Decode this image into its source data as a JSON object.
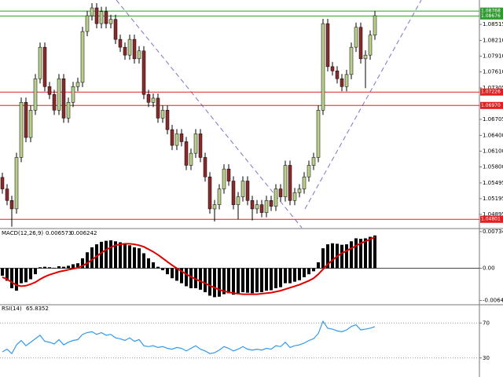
{
  "chart_data": [
    {
      "type": "candlestick",
      "up_color": "#b9cf8c",
      "down_color": "#8c2a2a",
      "wick_color": "#000000",
      "ylim": [
        1.0464,
        1.0898
      ],
      "yticks": [
        1.08515,
        {
          "value": 1.0821,
          "label": "1.08210"
        },
        {
          "value": 1.0791,
          "label": "1.07910"
        },
        {
          "value": 1.0761,
          "label": "1.07610"
        },
        1.07305,
        1.06705,
        {
          "value": 1.064,
          "label": "1.06400"
        },
        {
          "value": 1.061,
          "label": "1.06100"
        },
        {
          "value": 1.058,
          "label": "1.05800"
        },
        1.05495,
        1.05195,
        1.04895
      ],
      "levels": [
        {
          "value": 1.08768,
          "color": "#2e9a2e"
        },
        {
          "value": 1.08676,
          "color": "#2e9a2e"
        },
        {
          "value": 1.07226,
          "color": "#e02020"
        },
        {
          "value": 1.0697,
          "label": "1.06970",
          "color": "#e02020"
        },
        {
          "value": 1.04801,
          "color": "#e02020"
        }
      ],
      "candles": [
        [
          1.056,
          1.0569,
          1.0529,
          1.0538
        ],
        [
          1.0538,
          1.0547,
          1.0507,
          1.0516
        ],
        [
          1.0516,
          1.0525,
          1.0466,
          1.05
        ],
        [
          1.05,
          1.0607,
          1.0491,
          1.0598
        ],
        [
          1.0598,
          1.0712,
          1.0589,
          1.0703
        ],
        [
          1.0703,
          1.0712,
          1.0627,
          1.0636
        ],
        [
          1.0636,
          1.0697,
          1.0627,
          1.0688
        ],
        [
          1.0688,
          1.0757,
          1.0679,
          1.0748
        ],
        [
          1.0748,
          1.0817,
          1.0739,
          1.0808
        ],
        [
          1.0808,
          1.0817,
          1.0724,
          1.0733
        ],
        [
          1.0733,
          1.0742,
          1.0709,
          1.0718
        ],
        [
          1.0718,
          1.0727,
          1.0679,
          1.0688
        ],
        [
          1.0688,
          1.0757,
          1.0679,
          1.0748
        ],
        [
          1.0748,
          1.0757,
          1.0664,
          1.0673
        ],
        [
          1.0673,
          1.0712,
          1.0664,
          1.0703
        ],
        [
          1.0703,
          1.0742,
          1.0694,
          1.0733
        ],
        [
          1.0733,
          1.075,
          1.0724,
          1.0741
        ],
        [
          1.0741,
          1.0847,
          1.0732,
          1.0838
        ],
        [
          1.0838,
          1.0877,
          1.0829,
          1.0868
        ],
        [
          1.0868,
          1.0892,
          1.0859,
          1.0883
        ],
        [
          1.0883,
          1.0892,
          1.0844,
          1.0853
        ],
        [
          1.0853,
          1.0885,
          1.0844,
          1.0876
        ],
        [
          1.0876,
          1.0885,
          1.0844,
          1.0853
        ],
        [
          1.0853,
          1.087,
          1.0844,
          1.0861
        ],
        [
          1.0861,
          1.087,
          1.0814,
          1.0823
        ],
        [
          1.0823,
          1.0832,
          1.0799,
          1.0808
        ],
        [
          1.0808,
          1.0817,
          1.0784,
          1.0793
        ],
        [
          1.0793,
          1.0832,
          1.0784,
          1.0823
        ],
        [
          1.0823,
          1.0832,
          1.0777,
          1.0786
        ],
        [
          1.0786,
          1.081,
          1.0777,
          1.0801
        ],
        [
          1.0801,
          1.081,
          1.0709,
          1.0718
        ],
        [
          1.0718,
          1.0727,
          1.0694,
          1.0703
        ],
        [
          1.0703,
          1.072,
          1.0694,
          1.0711
        ],
        [
          1.0711,
          1.072,
          1.0664,
          1.0673
        ],
        [
          1.0673,
          1.0697,
          1.0664,
          1.0688
        ],
        [
          1.0688,
          1.0697,
          1.0642,
          1.0651
        ],
        [
          1.0651,
          1.066,
          1.0612,
          1.0621
        ],
        [
          1.0621,
          1.0652,
          1.0612,
          1.0643
        ],
        [
          1.0643,
          1.0652,
          1.0619,
          1.0628
        ],
        [
          1.0628,
          1.0637,
          1.0574,
          1.0583
        ],
        [
          1.0583,
          1.0615,
          1.0574,
          1.0606
        ],
        [
          1.0606,
          1.0652,
          1.0597,
          1.0643
        ],
        [
          1.0643,
          1.0652,
          1.0589,
          1.0598
        ],
        [
          1.0598,
          1.0607,
          1.0552,
          1.0561
        ],
        [
          1.0561,
          1.057,
          1.0491,
          1.05
        ],
        [
          1.05,
          1.0517,
          1.0476,
          1.0508
        ],
        [
          1.0508,
          1.0547,
          1.0499,
          1.0538
        ],
        [
          1.0538,
          1.0585,
          1.0529,
          1.0576
        ],
        [
          1.0576,
          1.0585,
          1.0544,
          1.0553
        ],
        [
          1.0553,
          1.0562,
          1.0499,
          1.0508
        ],
        [
          1.0508,
          1.0532,
          1.048,
          1.0523
        ],
        [
          1.0523,
          1.0562,
          1.0514,
          1.0553
        ],
        [
          1.0553,
          1.0562,
          1.0507,
          1.0516
        ],
        [
          1.0516,
          1.0525,
          1.0478,
          1.05
        ],
        [
          1.05,
          1.0517,
          1.0491,
          1.0508
        ],
        [
          1.0508,
          1.0517,
          1.0484,
          1.0493
        ],
        [
          1.0493,
          1.0525,
          1.0484,
          1.0516
        ],
        [
          1.0516,
          1.0525,
          1.0496,
          1.0505
        ],
        [
          1.0505,
          1.0547,
          1.0496,
          1.0538
        ],
        [
          1.0538,
          1.0547,
          1.0514,
          1.0523
        ],
        [
          1.0523,
          1.0592,
          1.0514,
          1.0583
        ],
        [
          1.0583,
          1.0592,
          1.0507,
          1.0516
        ],
        [
          1.0516,
          1.054,
          1.0507,
          1.0531
        ],
        [
          1.0531,
          1.0547,
          1.0522,
          1.0538
        ],
        [
          1.0538,
          1.057,
          1.0529,
          1.0561
        ],
        [
          1.0561,
          1.0592,
          1.0552,
          1.0583
        ],
        [
          1.0583,
          1.0607,
          1.0574,
          1.0598
        ],
        [
          1.0598,
          1.0697,
          1.0589,
          1.0688
        ],
        [
          1.0688,
          1.0862,
          1.0679,
          1.0853
        ],
        [
          1.0853,
          1.0862,
          1.0762,
          1.0771
        ],
        [
          1.0771,
          1.078,
          1.0754,
          1.0763
        ],
        [
          1.0763,
          1.0772,
          1.0739,
          1.0748
        ],
        [
          1.0748,
          1.0757,
          1.0724,
          1.0733
        ],
        [
          1.0733,
          1.0765,
          1.0724,
          1.0756
        ],
        [
          1.0756,
          1.0817,
          1.0747,
          1.0808
        ],
        [
          1.0808,
          1.0855,
          1.0799,
          1.0846
        ],
        [
          1.0846,
          1.0855,
          1.0777,
          1.0786
        ],
        [
          1.0786,
          1.0802,
          1.073,
          1.0793
        ],
        [
          1.0793,
          1.084,
          1.0784,
          1.0831
        ],
        [
          1.0831,
          1.0877,
          1.0822,
          1.0868
        ]
      ]
    },
    {
      "type": "macd",
      "title": "MACD(12,26,9)",
      "color": "#000000",
      "signal_color": "#e00000",
      "ylim": [
        -0.007,
        0.0078
      ],
      "yticks": [
        0.007348,
        {
          "value": 0,
          "label": "0.00"
        },
        -0.006464
      ],
      "values": [
        -0.0015,
        -0.0025,
        -0.004,
        -0.0045,
        -0.003,
        -0.0028,
        -0.0022,
        -0.0012,
        0.0002,
        0.0003,
        0.0002,
        0.0001,
        0.0004,
        0.0003,
        0.0005,
        0.0008,
        0.001,
        0.002,
        0.0032,
        0.0042,
        0.0048,
        0.0053,
        0.0055,
        0.0056,
        0.0054,
        0.0052,
        0.0048,
        0.0046,
        0.0042,
        0.004,
        0.003,
        0.002,
        0.0012,
        0.0003,
        -0.0004,
        -0.0012,
        -0.002,
        -0.0025,
        -0.003,
        -0.0036,
        -0.004,
        -0.004,
        -0.0043,
        -0.0048,
        -0.0055,
        -0.0058,
        -0.0057,
        -0.0052,
        -0.005,
        -0.0053,
        -0.0052,
        -0.0048,
        -0.0049,
        -0.005,
        -0.0048,
        -0.0048,
        -0.0045,
        -0.0044,
        -0.004,
        -0.0038,
        -0.003,
        -0.003,
        -0.0027,
        -0.0024,
        -0.0018,
        -0.0012,
        -0.0006,
        0.0012,
        0.004,
        0.0048,
        0.005,
        0.0049,
        0.0047,
        0.0048,
        0.0054,
        0.006,
        0.0059,
        0.006,
        0.0063,
        0.006573
      ],
      "signal": [
        -0.0018,
        -0.0022,
        -0.0028,
        -0.0034,
        -0.0036,
        -0.0035,
        -0.0032,
        -0.0028,
        -0.0022,
        -0.0017,
        -0.0013,
        -0.001,
        -0.0007,
        -0.0005,
        -0.0003,
        -0.0001,
        0.0001,
        0.0005,
        0.001,
        0.0017,
        0.0024,
        0.0031,
        0.0037,
        0.0042,
        0.0046,
        0.0048,
        0.0049,
        0.0049,
        0.0048,
        0.0046,
        0.0043,
        0.0038,
        0.0033,
        0.0027,
        0.002,
        0.0013,
        0.0006,
        0,
        -0.0006,
        -0.0012,
        -0.0017,
        -0.0022,
        -0.0026,
        -0.003,
        -0.0035,
        -0.0039,
        -0.0043,
        -0.0046,
        -0.0048,
        -0.005,
        -0.0051,
        -0.0052,
        -0.0052,
        -0.0052,
        -0.0052,
        -0.0051,
        -0.005,
        -0.0049,
        -0.0047,
        -0.0045,
        -0.0042,
        -0.0039,
        -0.0036,
        -0.0033,
        -0.0029,
        -0.0025,
        -0.002,
        -0.0012,
        -0.0002,
        0.0008,
        0.0016,
        0.0024,
        0.003,
        0.0035,
        0.004,
        0.0045,
        0.005,
        0.0054,
        0.0058,
        0.006242
      ]
    },
    {
      "type": "line",
      "title": "RSI(14)",
      "color": "#3399ee",
      "ylim": [
        10,
        90
      ],
      "yticks": [
        70,
        30
      ],
      "values": [
        37,
        40,
        35,
        45,
        50,
        44,
        48,
        52,
        56,
        49,
        48,
        46,
        51,
        45,
        48,
        50,
        51,
        57,
        59,
        60,
        57,
        59,
        56,
        57,
        53,
        52,
        50,
        53,
        49,
        51,
        44,
        43,
        44,
        42,
        43,
        41,
        40,
        42,
        41,
        38,
        41,
        44,
        40,
        38,
        35,
        36,
        39,
        43,
        41,
        38,
        40,
        43,
        40,
        39,
        40,
        39,
        41,
        40,
        44,
        43,
        48,
        42,
        44,
        45,
        47,
        50,
        52,
        58,
        72,
        64,
        63,
        61,
        60,
        62,
        66,
        68,
        62,
        63,
        64,
        65.8352
      ]
    }
  ]
}
